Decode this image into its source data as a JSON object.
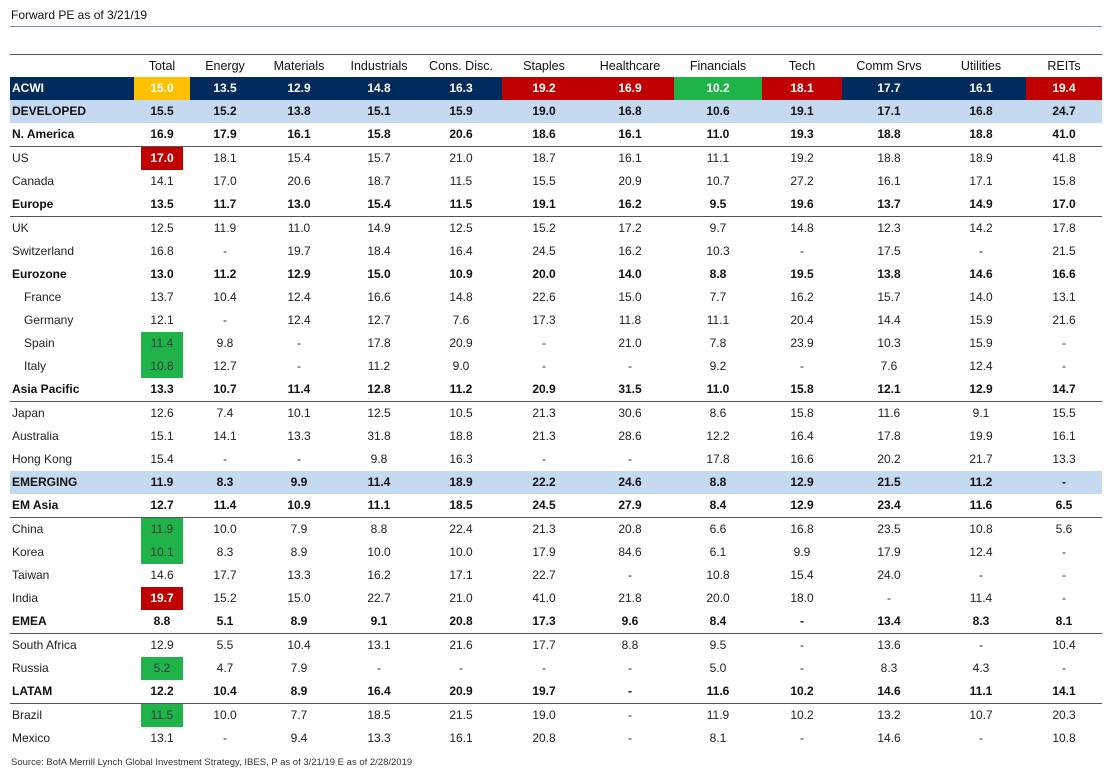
{
  "title": "Forward PE as of 3/21/19",
  "source": "Source: BofA Merrill Lynch Global Investment Strategy, IBES, P as of 3/21/19 E as of 2/28/2019",
  "colors": {
    "navy": "#002b5c",
    "band": "#c5d9f1",
    "green": "#1fb34a",
    "red": "#c00000",
    "yellow": "#ffc000"
  },
  "columns": [
    "",
    "Total",
    "Energy",
    "Materials",
    "Industrials",
    "Cons. Disc.",
    "Staples",
    "Healthcare",
    "Financials",
    "Tech",
    "Comm Srvs",
    "Utilities",
    "REITs"
  ],
  "rows": [
    {
      "name": "ACWI",
      "style": "acwi",
      "vals": [
        "15.0",
        "13.5",
        "12.9",
        "14.8",
        "16.3",
        "19.2",
        "16.9",
        "10.2",
        "18.1",
        "17.7",
        "16.1",
        "19.4"
      ],
      "hl": {
        "0": "yellow",
        "5": "red",
        "6": "red",
        "7": "green",
        "8": "red",
        "11": "red"
      }
    },
    {
      "name": "DEVELOPED",
      "style": "band",
      "vals": [
        "15.5",
        "15.2",
        "13.8",
        "15.1",
        "15.9",
        "19.0",
        "16.8",
        "10.6",
        "19.1",
        "17.1",
        "16.8",
        "24.7"
      ]
    },
    {
      "name": "N. America",
      "style": "bold",
      "vals": [
        "16.9",
        "17.9",
        "16.1",
        "15.8",
        "20.6",
        "18.6",
        "16.1",
        "11.0",
        "19.3",
        "18.8",
        "18.8",
        "41.0"
      ]
    },
    {
      "name": "US",
      "vals": [
        "17.0",
        "18.1",
        "15.4",
        "15.7",
        "21.0",
        "18.7",
        "16.1",
        "11.1",
        "19.2",
        "18.8",
        "18.9",
        "41.8"
      ],
      "hl": {
        "0": "red"
      }
    },
    {
      "name": "Canada",
      "vals": [
        "14.1",
        "17.0",
        "20.6",
        "18.7",
        "11.5",
        "15.5",
        "20.9",
        "10.7",
        "27.2",
        "16.1",
        "17.1",
        "15.8"
      ]
    },
    {
      "name": "Europe",
      "style": "bold",
      "vals": [
        "13.5",
        "11.7",
        "13.0",
        "15.4",
        "11.5",
        "19.1",
        "16.2",
        "9.5",
        "19.6",
        "13.7",
        "14.9",
        "17.0"
      ]
    },
    {
      "name": "UK",
      "vals": [
        "12.5",
        "11.9",
        "11.0",
        "14.9",
        "12.5",
        "15.2",
        "17.2",
        "9.7",
        "14.8",
        "12.3",
        "14.2",
        "17.8"
      ]
    },
    {
      "name": "Switzerland",
      "vals": [
        "16.8",
        "-",
        "19.7",
        "18.4",
        "16.4",
        "24.5",
        "16.2",
        "10.3",
        "-",
        "17.5",
        "-",
        "21.5"
      ]
    },
    {
      "name": "Eurozone",
      "style": "bold-nb",
      "vals": [
        "13.0",
        "11.2",
        "12.9",
        "15.0",
        "10.9",
        "20.0",
        "14.0",
        "8.8",
        "19.5",
        "13.8",
        "14.6",
        "16.6"
      ]
    },
    {
      "name": "France",
      "indent": true,
      "vals": [
        "13.7",
        "10.4",
        "12.4",
        "16.6",
        "14.8",
        "22.6",
        "15.0",
        "7.7",
        "16.2",
        "15.7",
        "14.0",
        "13.1"
      ]
    },
    {
      "name": "Germany",
      "indent": true,
      "vals": [
        "12.1",
        "-",
        "12.4",
        "12.7",
        "7.6",
        "17.3",
        "11.8",
        "11.1",
        "20.4",
        "14.4",
        "15.9",
        "21.6"
      ]
    },
    {
      "name": "Spain",
      "indent": true,
      "vals": [
        "11.4",
        "9.8",
        "-",
        "17.8",
        "20.9",
        "-",
        "21.0",
        "7.8",
        "23.9",
        "10.3",
        "15.9",
        "-"
      ],
      "hl": {
        "0": "green"
      }
    },
    {
      "name": "Italy",
      "indent": true,
      "vals": [
        "10.8",
        "12.7",
        "-",
        "11.2",
        "9.0",
        "-",
        "-",
        "9.2",
        "-",
        "7.6",
        "12.4",
        "-"
      ],
      "hl": {
        "0": "green"
      }
    },
    {
      "name": "Asia Pacific",
      "style": "bold",
      "vals": [
        "13.3",
        "10.7",
        "11.4",
        "12.8",
        "11.2",
        "20.9",
        "31.5",
        "11.0",
        "15.8",
        "12.1",
        "12.9",
        "14.7"
      ]
    },
    {
      "name": "Japan",
      "vals": [
        "12.6",
        "7.4",
        "10.1",
        "12.5",
        "10.5",
        "21.3",
        "30.6",
        "8.6",
        "15.8",
        "11.6",
        "9.1",
        "15.5"
      ]
    },
    {
      "name": "Australia",
      "vals": [
        "15.1",
        "14.1",
        "13.3",
        "31.8",
        "18.8",
        "21.3",
        "28.6",
        "12.2",
        "16.4",
        "17.8",
        "19.9",
        "16.1"
      ]
    },
    {
      "name": "Hong Kong",
      "vals": [
        "15.4",
        "-",
        "-",
        "9.8",
        "16.3",
        "-",
        "-",
        "17.8",
        "16.6",
        "20.2",
        "21.7",
        "13.3"
      ]
    },
    {
      "name": "EMERGING",
      "style": "band",
      "vals": [
        "11.9",
        "8.3",
        "9.9",
        "11.4",
        "18.9",
        "22.2",
        "24.6",
        "8.8",
        "12.9",
        "21.5",
        "11.2",
        "-"
      ]
    },
    {
      "name": "EM Asia",
      "style": "bold",
      "vals": [
        "12.7",
        "11.4",
        "10.9",
        "11.1",
        "18.5",
        "24.5",
        "27.9",
        "8.4",
        "12.9",
        "23.4",
        "11.6",
        "6.5"
      ]
    },
    {
      "name": "China",
      "vals": [
        "11.9",
        "10.0",
        "7.9",
        "8.8",
        "22.4",
        "21.3",
        "20.8",
        "6.6",
        "16.8",
        "23.5",
        "10.8",
        "5.6"
      ],
      "hl": {
        "0": "green"
      }
    },
    {
      "name": "Korea",
      "vals": [
        "10.1",
        "8.3",
        "8.9",
        "10.0",
        "10.0",
        "17.9",
        "84.6",
        "6.1",
        "9.9",
        "17.9",
        "12.4",
        "-"
      ],
      "hl": {
        "0": "green"
      }
    },
    {
      "name": "Taiwan",
      "vals": [
        "14.6",
        "17.7",
        "13.3",
        "16.2",
        "17.1",
        "22.7",
        "-",
        "10.8",
        "15.4",
        "24.0",
        "-",
        "-"
      ]
    },
    {
      "name": "India",
      "vals": [
        "19.7",
        "15.2",
        "15.0",
        "22.7",
        "21.0",
        "41.0",
        "21.8",
        "20.0",
        "18.0",
        "-",
        "11.4",
        "-"
      ],
      "hl": {
        "0": "red"
      }
    },
    {
      "name": "EMEA",
      "style": "bold",
      "vals": [
        "8.8",
        "5.1",
        "8.9",
        "9.1",
        "20.8",
        "17.3",
        "9.6",
        "8.4",
        "-",
        "13.4",
        "8.3",
        "8.1"
      ]
    },
    {
      "name": "South Africa",
      "vals": [
        "12.9",
        "5.5",
        "10.4",
        "13.1",
        "21.6",
        "17.7",
        "8.8",
        "9.5",
        "-",
        "13.6",
        "-",
        "10.4"
      ]
    },
    {
      "name": "Russia",
      "vals": [
        "5.2",
        "4.7",
        "7.9",
        "-",
        "-",
        "-",
        "-",
        "5.0",
        "-",
        "8.3",
        "4.3",
        "-"
      ],
      "hl": {
        "0": "green"
      }
    },
    {
      "name": "LATAM",
      "style": "bold",
      "vals": [
        "12.2",
        "10.4",
        "8.9",
        "16.4",
        "20.9",
        "19.7",
        "-",
        "11.6",
        "10.2",
        "14.6",
        "11.1",
        "14.1"
      ]
    },
    {
      "name": "Brazil",
      "vals": [
        "11.5",
        "10.0",
        "7.7",
        "18.5",
        "21.5",
        "19.0",
        "-",
        "11.9",
        "10.2",
        "13.2",
        "10.7",
        "20.3"
      ],
      "hl": {
        "0": "green"
      }
    },
    {
      "name": "Mexico",
      "vals": [
        "13.1",
        "-",
        "9.4",
        "13.3",
        "16.1",
        "20.8",
        "-",
        "8.1",
        "-",
        "14.6",
        "-",
        "10.8"
      ]
    }
  ]
}
